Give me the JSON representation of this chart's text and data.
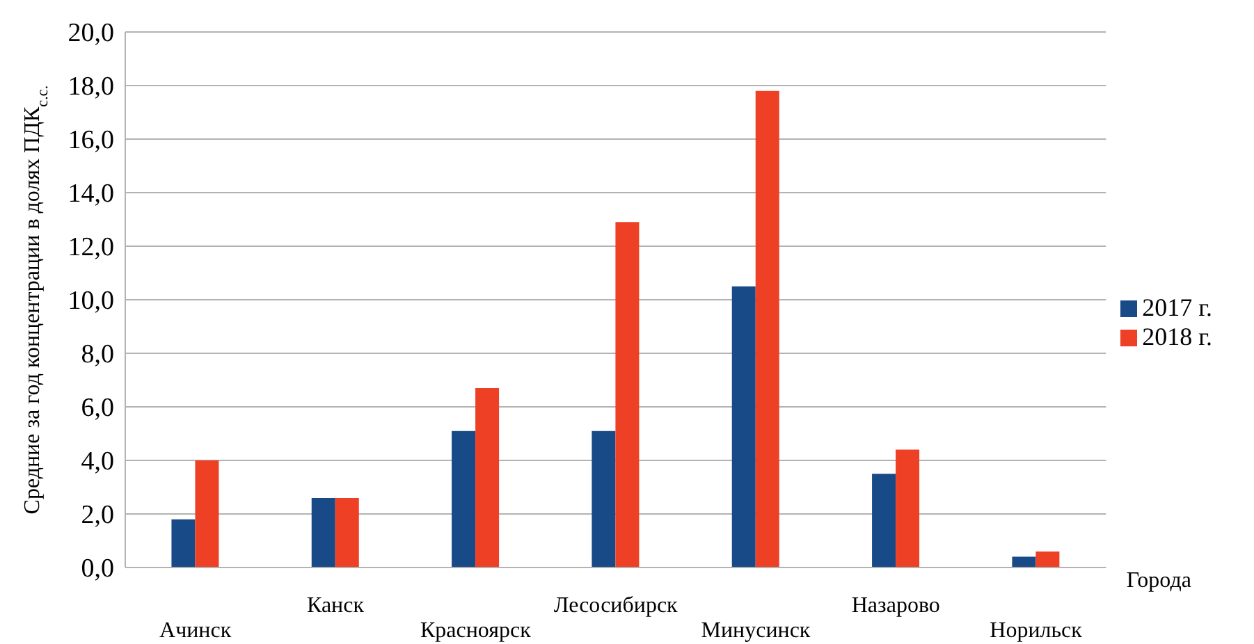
{
  "chart_data": {
    "type": "bar",
    "ylabel": "Средние за год концентрации в долях ПДК$_{с.с.}$",
    "xlabel": "Города",
    "categories": [
      "Ачинск",
      "Канск",
      "Красноярск",
      "Лесосибирск",
      "Минусинск",
      "Назарово",
      "Норильск"
    ],
    "series": [
      {
        "name": "2017 г.",
        "color": "#174a86",
        "values": [
          1.8,
          2.6,
          5.1,
          5.1,
          10.5,
          3.5,
          0.4
        ]
      },
      {
        "name": "2018 г.",
        "color": "#ee4024",
        "values": [
          4.0,
          2.6,
          6.7,
          12.9,
          17.8,
          4.4,
          0.6
        ]
      }
    ],
    "ylim": [
      0,
      20
    ],
    "yticks": [
      {
        "value": 0,
        "label": "0,0"
      },
      {
        "value": 2,
        "label": "2,0"
      },
      {
        "value": 4,
        "label": "4,0"
      },
      {
        "value": 6,
        "label": "6,0"
      },
      {
        "value": 8,
        "label": "8,0"
      },
      {
        "value": 10,
        "label": "10,0"
      },
      {
        "value": 12,
        "label": "12,0"
      },
      {
        "value": 14,
        "label": "14,0"
      },
      {
        "value": 16,
        "label": "16,0"
      },
      {
        "value": 18,
        "label": "18,0"
      },
      {
        "value": 20,
        "label": "20,0"
      }
    ],
    "grid": "y",
    "legend": "right"
  }
}
